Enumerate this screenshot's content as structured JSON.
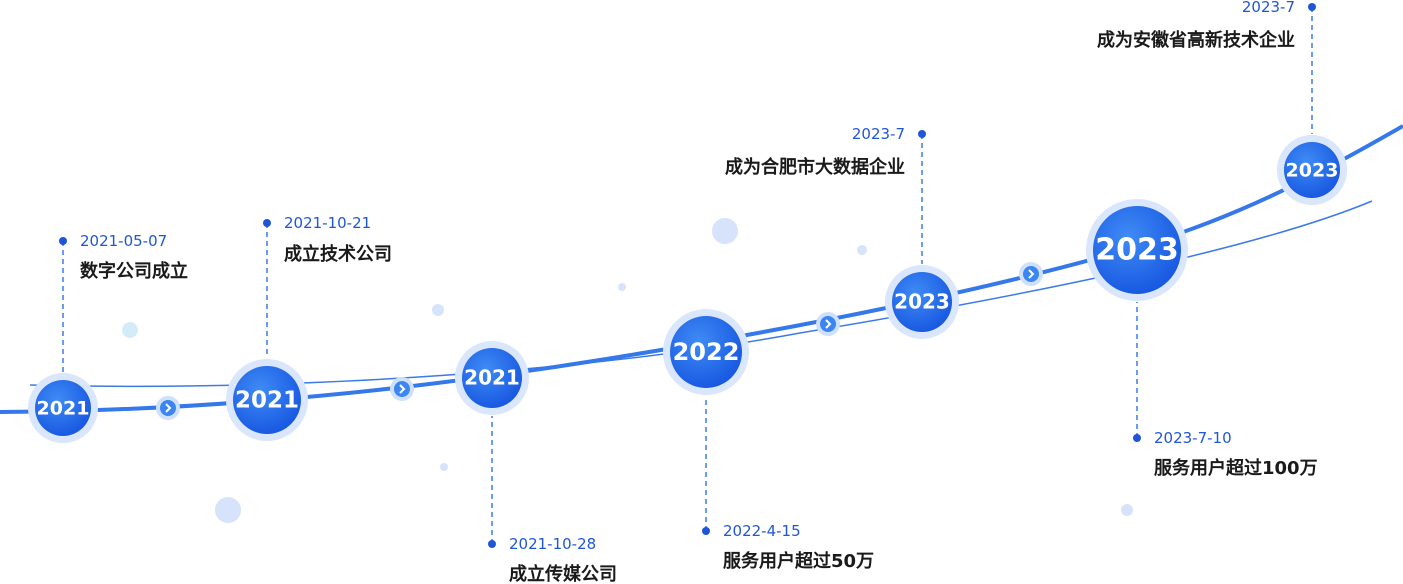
{
  "milestones": [
    {
      "year": "2021",
      "date": "2021-05-07",
      "label": "数字公司成立"
    },
    {
      "year": "2021",
      "date": "2021-10-21",
      "label": "成立技术公司"
    },
    {
      "year": "2021",
      "date": "2021-10-28",
      "label": "成立传媒公司"
    },
    {
      "year": "2022",
      "date": "2022-4-15",
      "label": "服务用户超过50万"
    },
    {
      "year": "2023",
      "date": "2023-7",
      "label": "成为合肥市大数据企业"
    },
    {
      "year": "2023",
      "date": "2023-7-10",
      "label": "服务用户超过100万"
    },
    {
      "year": "2023",
      "date": "2023-7",
      "label": "成为安徽省高新技术企业"
    }
  ]
}
